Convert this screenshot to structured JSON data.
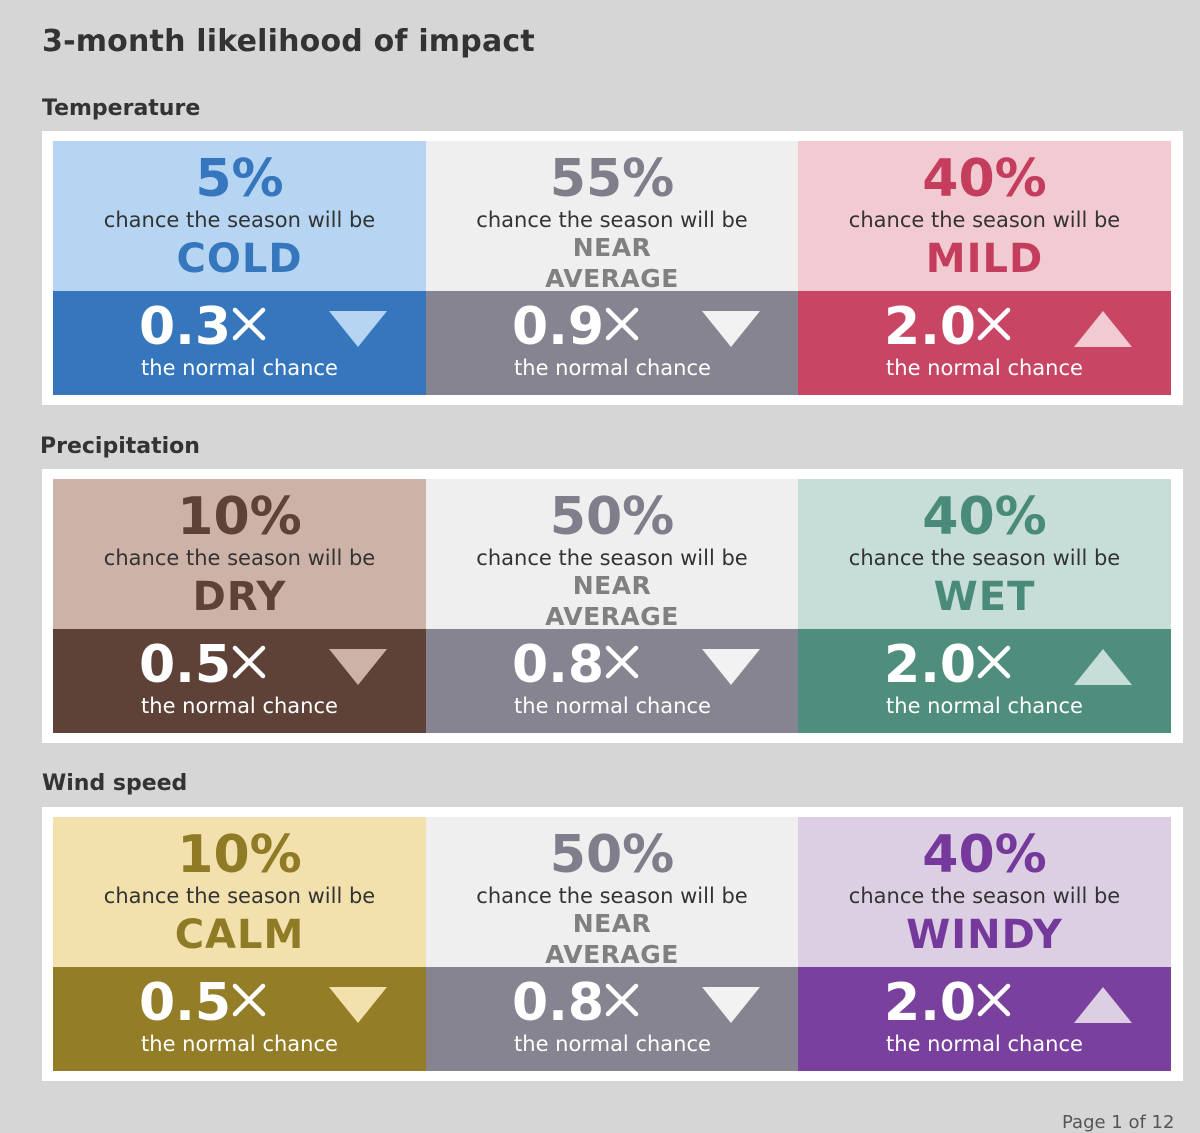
{
  "title": "3-month likelihood of impact",
  "footer": {
    "page_label": "Page 1 of 12"
  },
  "sections": [
    {
      "label": "Temperature",
      "cards": [
        {
          "pct": "5%",
          "chance": "chance the season will be",
          "word": "COLD",
          "word_line2": "",
          "mult": "0.3",
          "normal": "the normal chance",
          "direction": "down",
          "top_bg": "#b5d5f3",
          "bot_bg": "#3576bc",
          "accent": "#3576bc",
          "arrow_color": "#b5d5f3"
        },
        {
          "pct": "55%",
          "chance": "chance the season will be",
          "word": "NEAR",
          "word_line2": "AVERAGE",
          "mult": "0.9",
          "normal": "the normal chance",
          "direction": "down",
          "top_bg": "#efefef",
          "bot_bg": "#858490",
          "accent": "#7f7e8a",
          "arrow_color": "#f2f2f2"
        },
        {
          "pct": "40%",
          "chance": "chance the season will be",
          "word": "MILD",
          "word_line2": "",
          "mult": "2.0",
          "normal": "the normal chance",
          "direction": "up",
          "top_bg": "#f2cad2",
          "bot_bg": "#c84564",
          "accent": "#c43d5c",
          "arrow_color": "#f2cad2"
        }
      ]
    },
    {
      "label": "Precipitation",
      "cards": [
        {
          "pct": "10%",
          "chance": "chance the season will be",
          "word": "DRY",
          "word_line2": "",
          "mult": "0.5",
          "normal": "the normal chance",
          "direction": "down",
          "top_bg": "#cdb2a7",
          "bot_bg": "#5e4137",
          "accent": "#5e4137",
          "arrow_color": "#cdb2a7"
        },
        {
          "pct": "50%",
          "chance": "chance the season will be",
          "word": "NEAR",
          "word_line2": "AVERAGE",
          "mult": "0.8",
          "normal": "the normal chance",
          "direction": "down",
          "top_bg": "#efefef",
          "bot_bg": "#858490",
          "accent": "#7f7e8a",
          "arrow_color": "#f2f2f2"
        },
        {
          "pct": "40%",
          "chance": "chance the season will be",
          "word": "WET",
          "word_line2": "",
          "mult": "2.0",
          "normal": "the normal chance",
          "direction": "up",
          "top_bg": "#c6ddd8",
          "bot_bg": "#4f8d7d",
          "accent": "#4a8a79",
          "arrow_color": "#c6ddd8"
        }
      ]
    },
    {
      "label": "Wind speed",
      "cards": [
        {
          "pct": "10%",
          "chance": "chance the season will be",
          "word": "CALM",
          "word_line2": "",
          "mult": "0.5",
          "normal": "the normal chance",
          "direction": "down",
          "top_bg": "#f2e1ad",
          "bot_bg": "#937d27",
          "accent": "#8f7a25",
          "arrow_color": "#f2e1ad"
        },
        {
          "pct": "50%",
          "chance": "chance the season will be",
          "word": "NEAR",
          "word_line2": "AVERAGE",
          "mult": "0.8",
          "normal": "the normal chance",
          "direction": "down",
          "top_bg": "#efefef",
          "bot_bg": "#858490",
          "accent": "#7f7e8a",
          "arrow_color": "#f2f2f2"
        },
        {
          "pct": "40%",
          "chance": "chance the season will be",
          "word": "WINDY",
          "word_line2": "",
          "mult": "2.0",
          "normal": "the normal chance",
          "direction": "up",
          "top_bg": "#ddcfe3",
          "bot_bg": "#7a409e",
          "accent": "#74399a",
          "arrow_color": "#ddcfe3"
        }
      ]
    }
  ]
}
